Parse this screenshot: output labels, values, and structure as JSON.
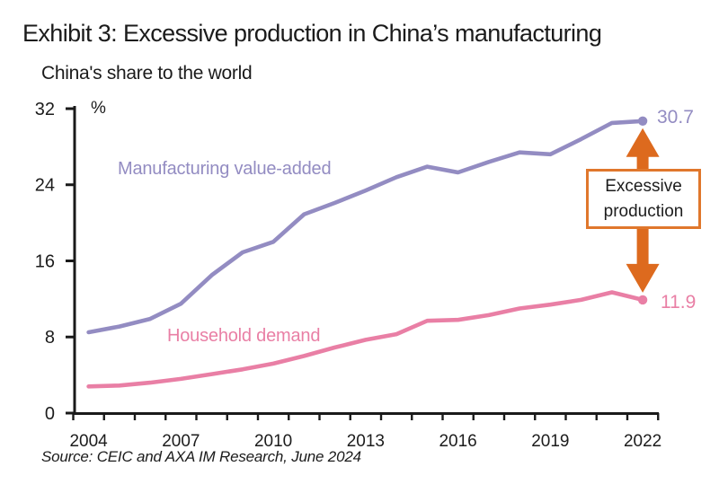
{
  "chart_data": {
    "type": "line",
    "title": "Exhibit 3: Excessive production in China’s manufacturing",
    "subtitle": "China's share to the world",
    "unit": "%",
    "source": "Source: CEIC and AXA IM Research, June 2024",
    "x": [
      2004,
      2005,
      2006,
      2007,
      2008,
      2009,
      2010,
      2011,
      2012,
      2013,
      2014,
      2015,
      2016,
      2017,
      2018,
      2019,
      2020,
      2021,
      2022
    ],
    "x_tick_labels": [
      "2004",
      "2007",
      "2010",
      "2013",
      "2016",
      "2019",
      "2022"
    ],
    "y_ticks": [
      "0",
      "8",
      "16",
      "24",
      "32"
    ],
    "ylim": [
      0,
      32
    ],
    "grid": false,
    "legend_position": "inline-labels",
    "series": [
      {
        "name": "Manufacturing value-added",
        "color": "#938CC2",
        "end_label": "30.7",
        "values": [
          8.5,
          9.1,
          9.9,
          11.5,
          14.5,
          16.9,
          18.0,
          20.9,
          22.1,
          23.4,
          24.8,
          25.9,
          25.3,
          26.4,
          27.4,
          27.2,
          28.8,
          30.5,
          30.7
        ]
      },
      {
        "name": "Household demand",
        "color": "#E97FA5",
        "end_label": "11.9",
        "values": [
          2.8,
          2.9,
          3.2,
          3.6,
          4.1,
          4.6,
          5.2,
          6.0,
          6.9,
          7.7,
          8.3,
          9.7,
          9.8,
          10.3,
          11.0,
          11.4,
          11.9,
          12.7,
          11.9
        ]
      }
    ],
    "callout": {
      "label": "Excessive production",
      "arrow_color": "#DD6A1E",
      "border_color": "#E0772C"
    },
    "axis_color": "#1a1a1a"
  }
}
